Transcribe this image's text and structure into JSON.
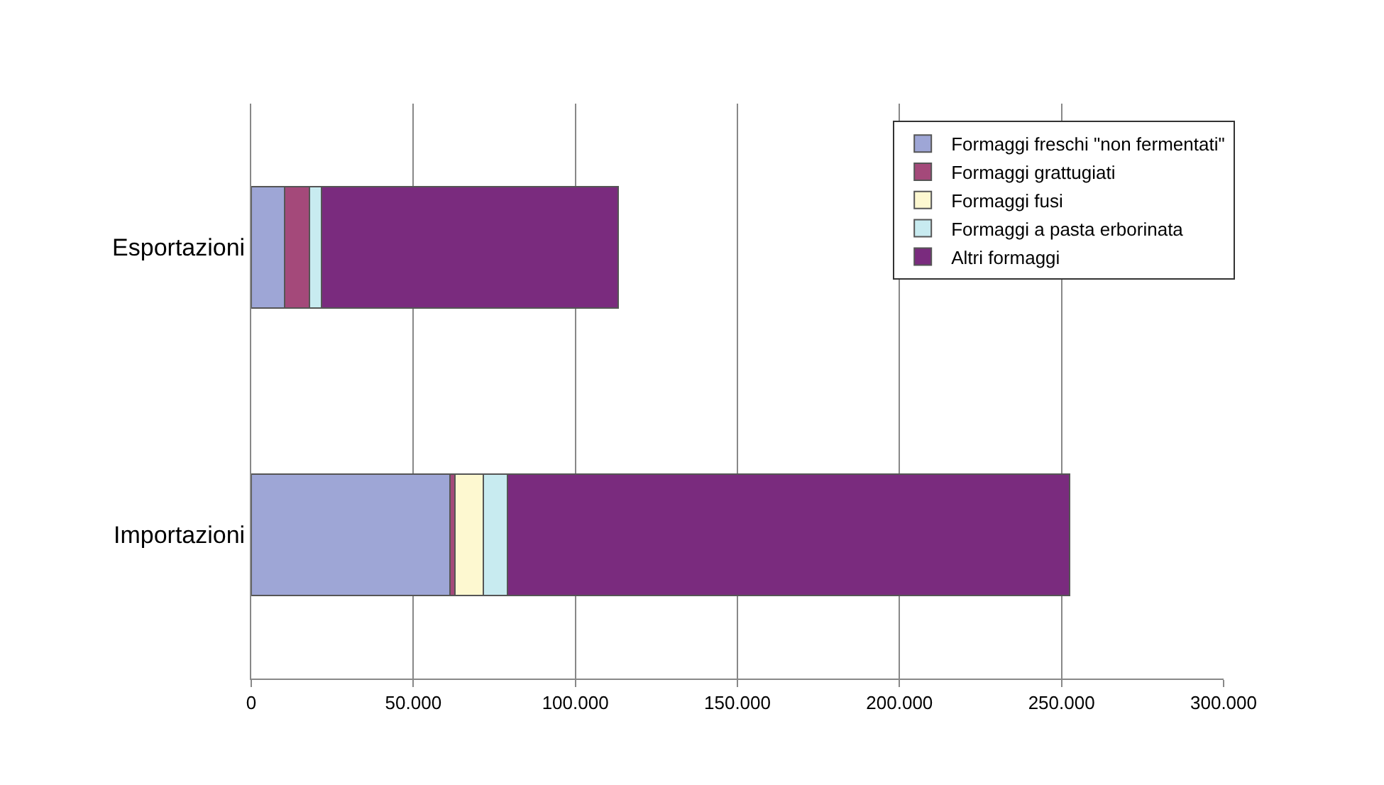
{
  "chart_data": {
    "type": "bar",
    "orientation": "horizontal",
    "stacked": true,
    "categories": [
      "Esportazioni",
      "Importazioni"
    ],
    "series": [
      {
        "name": "Formaggi freschi \"non fermentati\"",
        "color": "#9ea6d6",
        "values": [
          10300,
          61300
        ]
      },
      {
        "name": "Formaggi grattugiati",
        "color": "#a4497a",
        "values": [
          7700,
          1500
        ]
      },
      {
        "name": "Formaggi fusi",
        "color": "#fdf8d0",
        "values": [
          0,
          8700
        ]
      },
      {
        "name": "Formaggi a pasta erborinata",
        "color": "#c8ebf0",
        "values": [
          3700,
          7500
        ]
      },
      {
        "name": "Altri formaggi",
        "color": "#7a2b7e",
        "values": [
          91400,
          173400
        ]
      }
    ],
    "xlim": [
      0,
      300000
    ],
    "xticks": [
      0,
      {
        "value": 50000,
        "label": "50.000"
      },
      {
        "value": 100000,
        "label": "100.000"
      },
      {
        "value": 150000,
        "label": "150.000"
      },
      {
        "value": 200000,
        "label": "200.000"
      },
      {
        "value": 250000,
        "label": "250.000"
      },
      {
        "value": 300000,
        "label": "300.000"
      }
    ],
    "grid": "x",
    "legend": "top right"
  }
}
